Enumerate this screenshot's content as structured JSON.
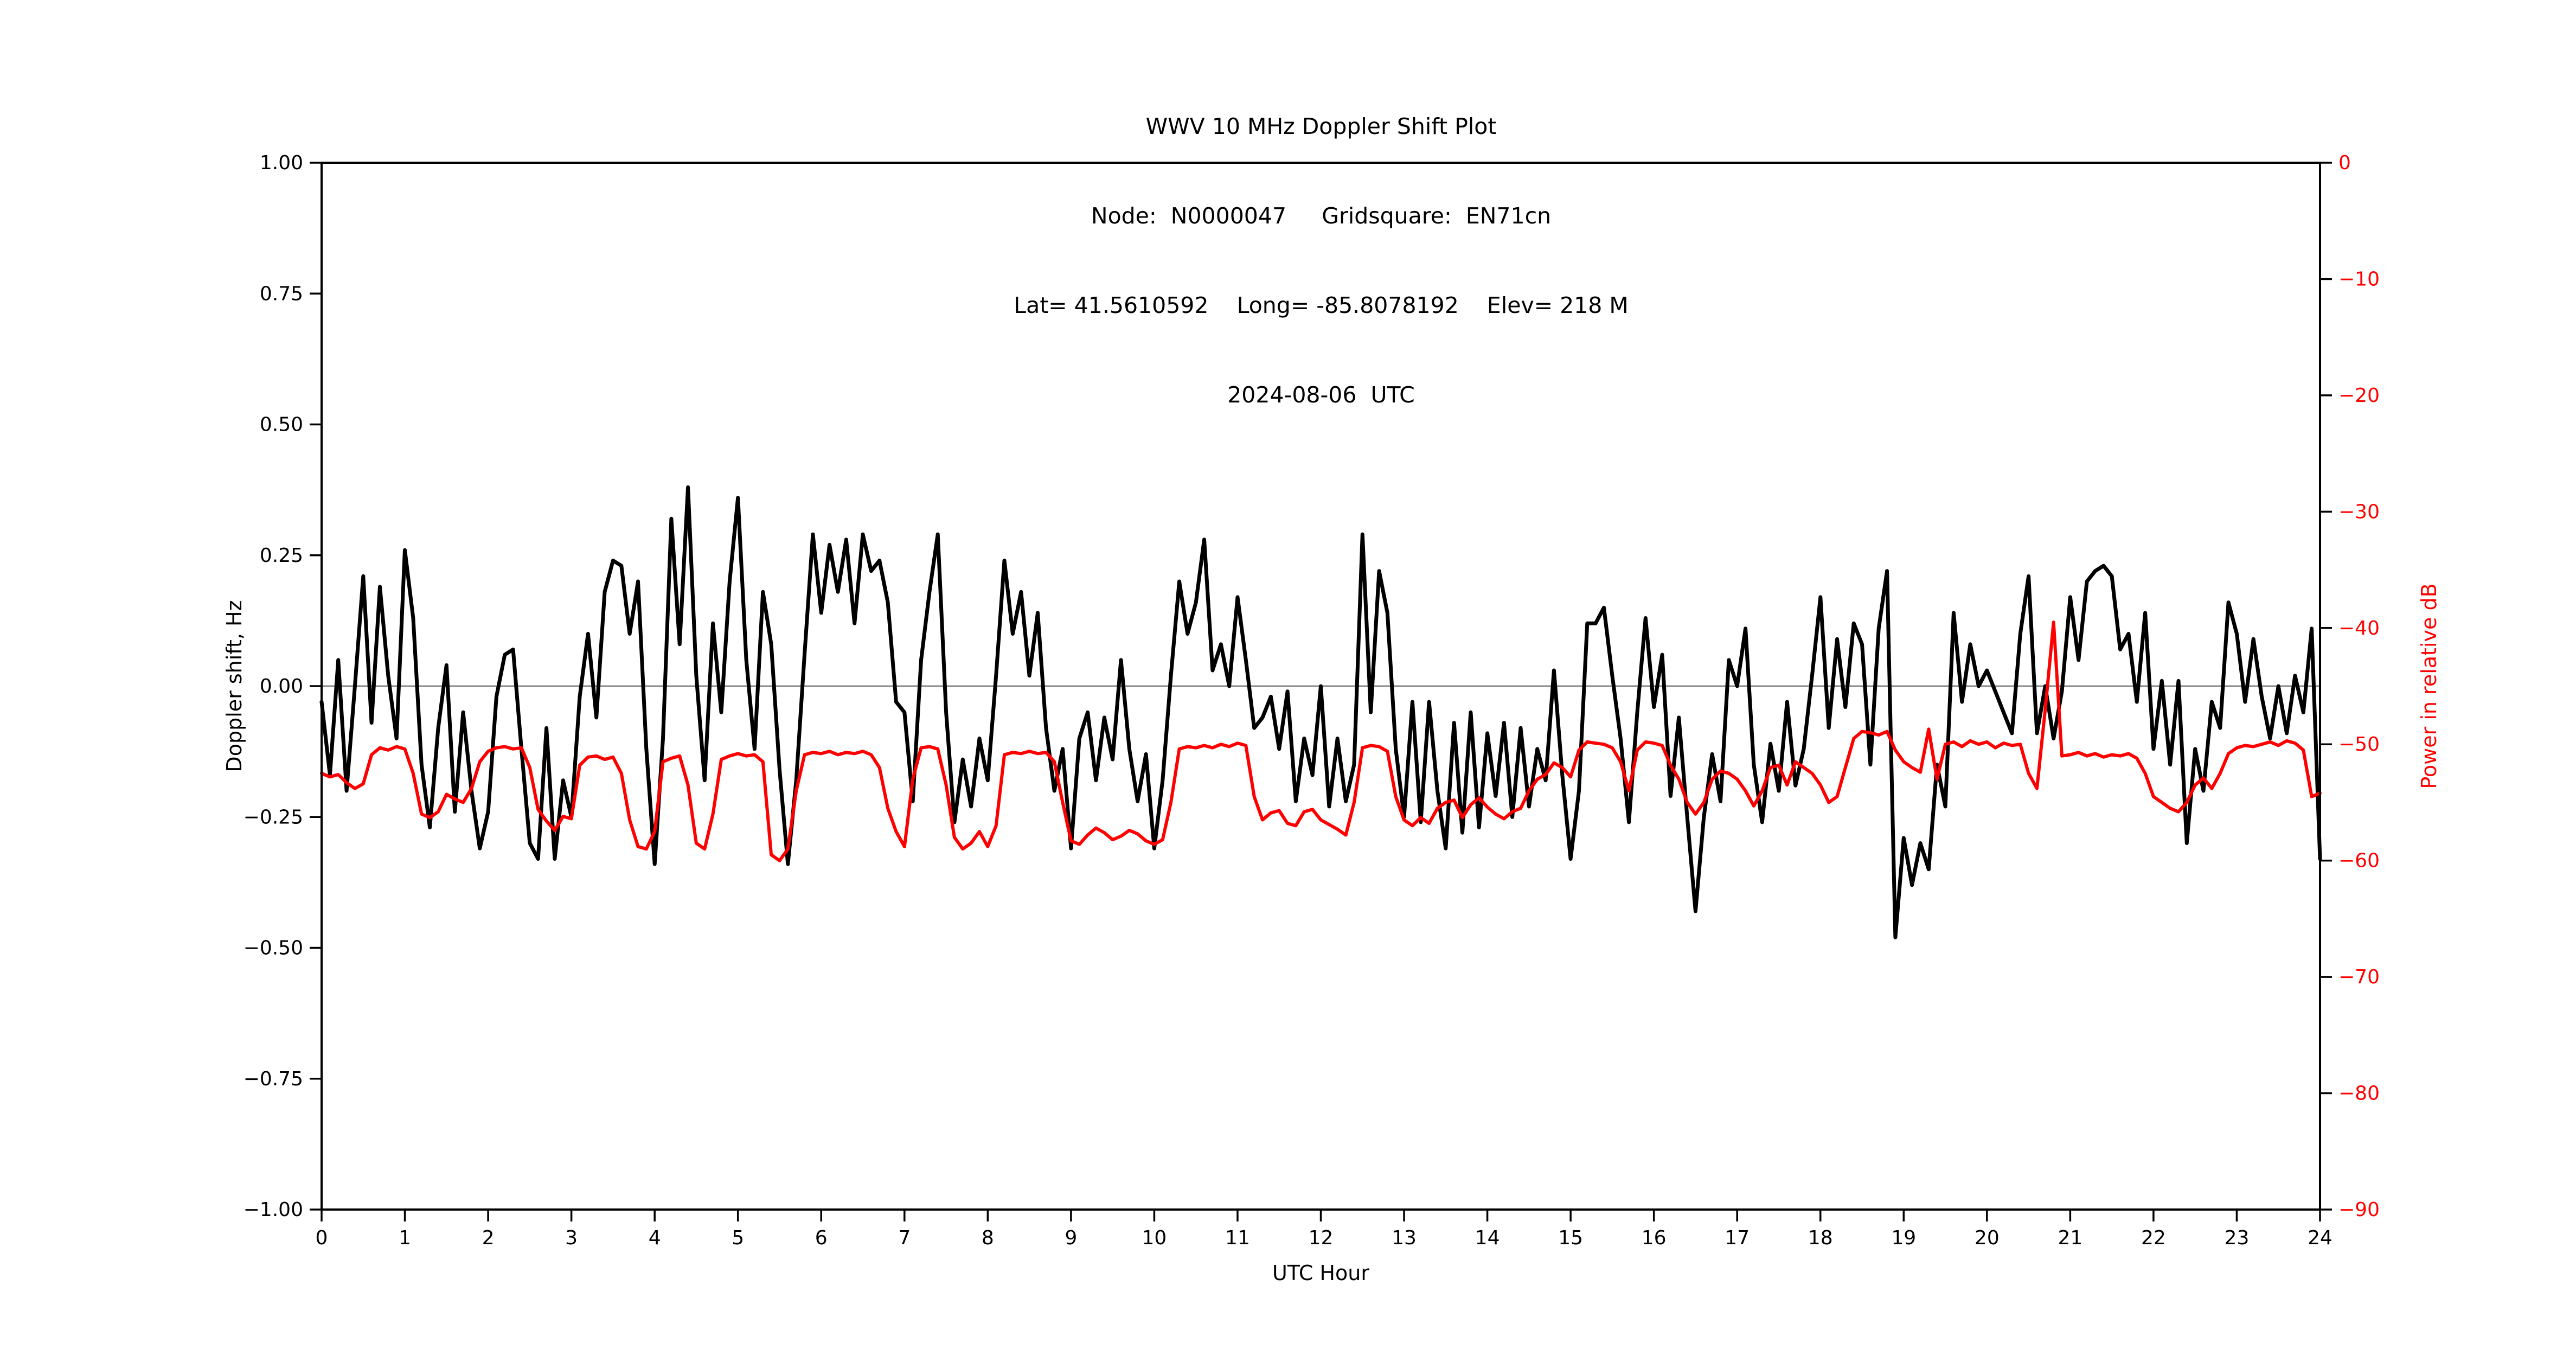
{
  "station": {
    "node": "N0000047",
    "gridsquare": "EN71cn",
    "lat": "41.5610592",
    "long": "-85.8078192",
    "elev": "218 M",
    "date": "2024-08-06",
    "timezone": "UTC"
  },
  "chart_data": {
    "type": "line",
    "title_lines": [
      "WWV 10 MHz Doppler Shift Plot",
      "Node:  N0000047     Gridsquare:  EN71cn",
      "Lat= 41.5610592    Long= -85.8078192    Elev= 218 M",
      "2024-08-06  UTC"
    ],
    "xlabel": "UTC Hour",
    "ylabel_left": "Doppler shift, Hz",
    "ylabel_right": "Power in relative dB",
    "xlim": [
      0,
      24
    ],
    "ylim_left": [
      -1.0,
      1.0
    ],
    "ylim_right": [
      -90,
      0
    ],
    "x_ticks": [
      0,
      1,
      2,
      3,
      4,
      5,
      6,
      7,
      8,
      9,
      10,
      11,
      12,
      13,
      14,
      15,
      16,
      17,
      18,
      19,
      20,
      21,
      22,
      23,
      24
    ],
    "y_ticks_left": [
      1.0,
      0.75,
      0.5,
      0.25,
      0.0,
      -0.25,
      -0.5,
      -0.75,
      -1.0
    ],
    "y_ticks_right": [
      0,
      -10,
      -20,
      -30,
      -40,
      -50,
      -60,
      -70,
      -80,
      -90
    ],
    "grid": false,
    "zero_line": true,
    "zero_line_color": "#888888",
    "x_step_hours": 0.1,
    "series": [
      {
        "name": "doppler_shift_hz",
        "axis": "left",
        "color": "#000000",
        "values": [
          -0.03,
          -0.17,
          0.05,
          -0.2,
          0.0,
          0.21,
          -0.07,
          0.19,
          0.02,
          -0.1,
          0.26,
          0.13,
          -0.15,
          -0.27,
          -0.08,
          0.04,
          -0.24,
          -0.05,
          -0.2,
          -0.31,
          -0.24,
          -0.02,
          0.06,
          0.07,
          -0.12,
          -0.3,
          -0.33,
          -0.08,
          -0.33,
          -0.18,
          -0.25,
          -0.02,
          0.1,
          -0.06,
          0.18,
          0.24,
          0.23,
          0.1,
          0.2,
          -0.12,
          -0.34,
          -0.1,
          0.32,
          0.08,
          0.38,
          0.02,
          -0.18,
          0.12,
          -0.05,
          0.2,
          0.36,
          0.05,
          -0.12,
          0.18,
          0.08,
          -0.16,
          -0.34,
          -0.18,
          0.06,
          0.29,
          0.14,
          0.27,
          0.18,
          0.28,
          0.12,
          0.29,
          0.22,
          0.24,
          0.16,
          -0.03,
          -0.05,
          -0.22,
          0.05,
          0.18,
          0.29,
          -0.05,
          -0.26,
          -0.14,
          -0.23,
          -0.1,
          -0.18,
          0.02,
          0.24,
          0.1,
          0.18,
          0.02,
          0.14,
          -0.08,
          -0.2,
          -0.12,
          -0.31,
          -0.1,
          -0.05,
          -0.18,
          -0.06,
          -0.14,
          0.05,
          -0.12,
          -0.22,
          -0.13,
          -0.31,
          -0.18,
          0.02,
          0.2,
          0.1,
          0.16,
          0.28,
          0.03,
          0.08,
          0.0,
          0.17,
          0.05,
          -0.08,
          -0.06,
          -0.02,
          -0.12,
          -0.01,
          -0.22,
          -0.1,
          -0.17,
          0.0,
          -0.23,
          -0.1,
          -0.22,
          -0.15,
          0.29,
          -0.05,
          0.22,
          0.14,
          -0.12,
          -0.25,
          -0.03,
          -0.26,
          -0.03,
          -0.2,
          -0.31,
          -0.07,
          -0.28,
          -0.05,
          -0.27,
          -0.09,
          -0.21,
          -0.07,
          -0.25,
          -0.08,
          -0.23,
          -0.12,
          -0.18,
          0.03,
          -0.17,
          -0.33,
          -0.2,
          0.12,
          0.12,
          0.15,
          0.02,
          -0.1,
          -0.26,
          -0.05,
          0.13,
          -0.04,
          0.06,
          -0.21,
          -0.06,
          -0.25,
          -0.43,
          -0.25,
          -0.13,
          -0.22,
          0.05,
          0.0,
          0.11,
          -0.15,
          -0.26,
          -0.11,
          -0.2,
          -0.03,
          -0.19,
          -0.12,
          0.02,
          0.17,
          -0.08,
          0.09,
          -0.04,
          0.12,
          0.08,
          -0.15,
          0.11,
          0.22,
          -0.48,
          -0.29,
          -0.38,
          -0.3,
          -0.35,
          -0.15,
          -0.23,
          0.14,
          -0.03,
          0.08,
          0.0,
          0.03,
          -0.01,
          -0.05,
          -0.09,
          0.1,
          0.21,
          -0.09,
          0.0,
          -0.1,
          -0.01,
          0.17,
          0.05,
          0.2,
          0.22,
          0.23,
          0.21,
          0.07,
          0.1,
          -0.03,
          0.14,
          -0.12,
          0.01,
          -0.15,
          0.01,
          -0.3,
          -0.12,
          -0.2,
          -0.03,
          -0.08,
          0.16,
          0.1,
          -0.03,
          0.09,
          -0.02,
          -0.1,
          0.0,
          -0.09,
          0.02,
          -0.05,
          0.11,
          -0.33
        ]
      },
      {
        "name": "power_rel_db",
        "axis": "right",
        "color": "#ff0000",
        "values": [
          -52.5,
          -52.8,
          -52.6,
          -53.3,
          -53.8,
          -53.4,
          -50.9,
          -50.3,
          -50.5,
          -50.2,
          -50.4,
          -52.5,
          -56.0,
          -56.3,
          -55.8,
          -54.3,
          -54.7,
          -55.0,
          -53.8,
          -51.5,
          -50.6,
          -50.3,
          -50.2,
          -50.4,
          -50.3,
          -52.0,
          -55.6,
          -56.6,
          -57.4,
          -56.2,
          -56.4,
          -51.8,
          -51.1,
          -51.0,
          -51.3,
          -51.1,
          -52.5,
          -56.5,
          -58.8,
          -59.0,
          -57.5,
          -51.5,
          -51.2,
          -51.0,
          -53.5,
          -58.5,
          -59.0,
          -56.0,
          -51.3,
          -51.0,
          -50.8,
          -51.0,
          -50.9,
          -51.5,
          -59.5,
          -60.0,
          -59.0,
          -54.0,
          -50.9,
          -50.7,
          -50.8,
          -50.6,
          -50.9,
          -50.7,
          -50.8,
          -50.6,
          -50.9,
          -52.0,
          -55.5,
          -57.5,
          -58.8,
          -53.0,
          -50.3,
          -50.2,
          -50.4,
          -53.5,
          -58.0,
          -59.0,
          -58.5,
          -57.5,
          -58.8,
          -57.0,
          -50.9,
          -50.7,
          -50.8,
          -50.6,
          -50.8,
          -50.7,
          -51.5,
          -55.0,
          -58.3,
          -58.6,
          -57.8,
          -57.2,
          -57.6,
          -58.2,
          -57.9,
          -57.4,
          -57.7,
          -58.3,
          -58.6,
          -58.2,
          -55.0,
          -50.4,
          -50.2,
          -50.3,
          -50.1,
          -50.3,
          -50.0,
          -50.2,
          -49.9,
          -50.1,
          -54.5,
          -56.5,
          -55.9,
          -55.7,
          -56.8,
          -57.0,
          -55.8,
          -55.6,
          -56.5,
          -56.9,
          -57.3,
          -57.8,
          -55.0,
          -50.3,
          -50.1,
          -50.2,
          -50.6,
          -54.5,
          -56.5,
          -57.0,
          -56.3,
          -56.8,
          -55.5,
          -55.0,
          -54.8,
          -56.3,
          -55.2,
          -54.6,
          -55.4,
          -56.0,
          -56.4,
          -55.8,
          -55.5,
          -54.0,
          -53.0,
          -52.6,
          -51.6,
          -52.0,
          -52.8,
          -50.5,
          -49.8,
          -49.9,
          -50.0,
          -50.3,
          -51.5,
          -54.0,
          -50.5,
          -49.8,
          -49.9,
          -50.1,
          -51.8,
          -53.0,
          -55.0,
          -56.0,
          -55.0,
          -53.0,
          -52.3,
          -52.5,
          -53.0,
          -54.0,
          -55.3,
          -54.0,
          -52.0,
          -51.8,
          -53.5,
          -51.5,
          -52.0,
          -52.5,
          -53.5,
          -55.0,
          -54.5,
          -52.0,
          -49.5,
          -48.9,
          -49.0,
          -49.2,
          -48.9,
          -50.5,
          -51.5,
          -52.0,
          -52.4,
          -48.7,
          -53.0,
          -50.0,
          -49.8,
          -50.2,
          -49.7,
          -50.0,
          -49.8,
          -50.3,
          -49.9,
          -50.1,
          -50.0,
          -52.5,
          -53.8,
          -47.0,
          -39.5,
          -51.0,
          -50.9,
          -50.7,
          -51.0,
          -50.8,
          -51.1,
          -50.9,
          -51.0,
          -50.8,
          -51.2,
          -52.5,
          -54.5,
          -55.0,
          -55.5,
          -55.8,
          -55.0,
          -53.5,
          -52.9,
          -53.8,
          -52.5,
          -50.8,
          -50.3,
          -50.1,
          -50.2,
          -50.0,
          -49.8,
          -50.1,
          -49.7,
          -49.9,
          -50.5,
          -54.5,
          -54.2
        ]
      }
    ]
  }
}
